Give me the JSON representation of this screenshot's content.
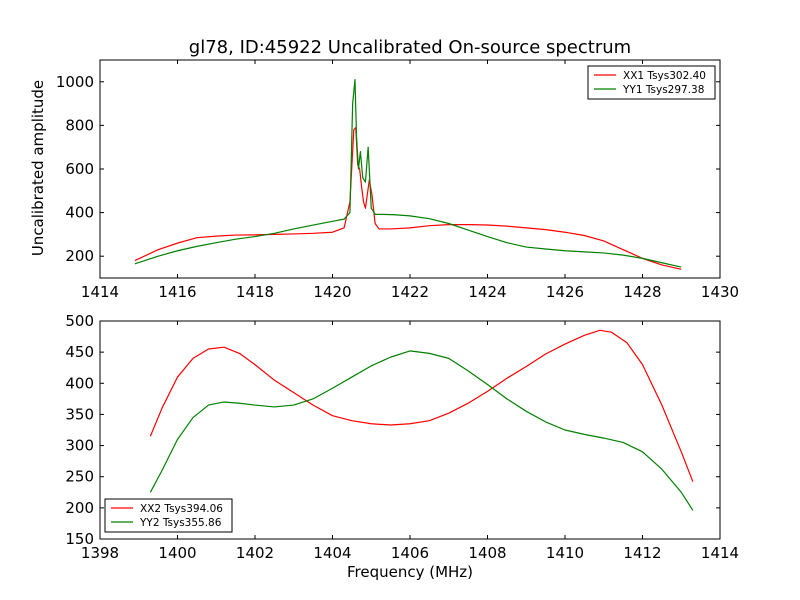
{
  "figure": {
    "title": "gl78, ID:45922 Uncalibrated On-source spectrum",
    "ylabel": "Uncalibrated amplitude",
    "xlabel": "Frequency (MHz)"
  },
  "colors": {
    "series_red": "#ff0000",
    "series_green": "#008000"
  },
  "chart_data": [
    {
      "type": "line",
      "xlim": [
        1414,
        1430
      ],
      "ylim": [
        100,
        1100
      ],
      "xticks": [
        1414,
        1416,
        1418,
        1420,
        1422,
        1424,
        1426,
        1428,
        1430
      ],
      "yticks": [
        200,
        400,
        600,
        800,
        1000
      ],
      "legend_position": "top-right",
      "grid": false,
      "series": [
        {
          "name": "XX1 Tsys302.40",
          "color": "#ff0000",
          "x": [
            1414.9,
            1415.5,
            1416,
            1416.5,
            1417,
            1417.5,
            1418,
            1418.5,
            1419,
            1419.5,
            1420,
            1420.3,
            1420.45,
            1420.55,
            1420.6,
            1420.65,
            1420.7,
            1420.75,
            1420.8,
            1420.85,
            1420.95,
            1421.02,
            1421.1,
            1421.2,
            1421.5,
            1422,
            1422.5,
            1423,
            1423.5,
            1424,
            1424.5,
            1425,
            1425.5,
            1426,
            1426.5,
            1427,
            1427.5,
            1428,
            1428.5,
            1429
          ],
          "y": [
            180,
            230,
            260,
            285,
            292,
            297,
            298,
            300,
            302,
            305,
            310,
            330,
            450,
            780,
            790,
            620,
            600,
            520,
            450,
            420,
            550,
            480,
            350,
            325,
            325,
            330,
            340,
            345,
            345,
            343,
            338,
            330,
            322,
            310,
            295,
            270,
            230,
            190,
            160,
            140
          ]
        },
        {
          "name": "YY1 Tsys297.38",
          "color": "#008000",
          "x": [
            1414.9,
            1415.5,
            1416,
            1416.5,
            1417,
            1417.5,
            1418,
            1418.5,
            1419,
            1419.5,
            1420,
            1420.3,
            1420.45,
            1420.52,
            1420.58,
            1420.62,
            1420.67,
            1420.72,
            1420.78,
            1420.85,
            1420.92,
            1421,
            1421.1,
            1421.3,
            1421.6,
            1422,
            1422.5,
            1423,
            1423.5,
            1424,
            1424.5,
            1425,
            1425.5,
            1426,
            1426.5,
            1427,
            1427.5,
            1428,
            1428.5,
            1429
          ],
          "y": [
            165,
            200,
            225,
            245,
            262,
            278,
            290,
            305,
            325,
            343,
            360,
            370,
            400,
            900,
            1010,
            750,
            600,
            680,
            560,
            540,
            700,
            420,
            392,
            392,
            390,
            385,
            372,
            350,
            320,
            290,
            262,
            242,
            233,
            225,
            220,
            215,
            205,
            190,
            170,
            150
          ]
        }
      ]
    },
    {
      "type": "line",
      "xlim": [
        1398,
        1414
      ],
      "ylim": [
        150,
        500
      ],
      "xticks": [
        1398,
        1400,
        1402,
        1404,
        1406,
        1408,
        1410,
        1412,
        1414
      ],
      "yticks": [
        150,
        200,
        250,
        300,
        350,
        400,
        450,
        500
      ],
      "legend_position": "bottom-left",
      "grid": false,
      "series": [
        {
          "name": "XX2 Tsys394.06",
          "color": "#ff0000",
          "x": [
            1399.3,
            1399.6,
            1400,
            1400.4,
            1400.8,
            1401.2,
            1401.6,
            1402,
            1402.5,
            1403,
            1403.5,
            1404,
            1404.5,
            1405,
            1405.5,
            1406,
            1406.5,
            1407,
            1407.5,
            1408,
            1408.5,
            1409,
            1409.5,
            1410,
            1410.5,
            1410.9,
            1411.2,
            1411.6,
            1412,
            1412.5,
            1413,
            1413.3
          ],
          "y": [
            315,
            360,
            410,
            440,
            455,
            458,
            448,
            430,
            405,
            385,
            365,
            348,
            340,
            335,
            333,
            335,
            340,
            352,
            368,
            387,
            408,
            427,
            447,
            463,
            477,
            485,
            482,
            465,
            430,
            365,
            290,
            242
          ]
        },
        {
          "name": "YY2 Tsys355.86",
          "color": "#008000",
          "x": [
            1399.3,
            1399.6,
            1400,
            1400.4,
            1400.8,
            1401.2,
            1401.6,
            1402,
            1402.5,
            1403,
            1403.5,
            1404,
            1404.5,
            1405,
            1405.5,
            1406,
            1406.5,
            1407,
            1407.5,
            1408,
            1408.5,
            1409,
            1409.5,
            1410,
            1410.5,
            1411,
            1411.5,
            1412,
            1412.5,
            1413,
            1413.3
          ],
          "y": [
            225,
            260,
            310,
            345,
            365,
            370,
            368,
            365,
            362,
            365,
            375,
            392,
            410,
            428,
            442,
            452,
            448,
            440,
            420,
            398,
            375,
            355,
            338,
            325,
            318,
            312,
            305,
            290,
            262,
            225,
            196
          ]
        }
      ]
    }
  ]
}
